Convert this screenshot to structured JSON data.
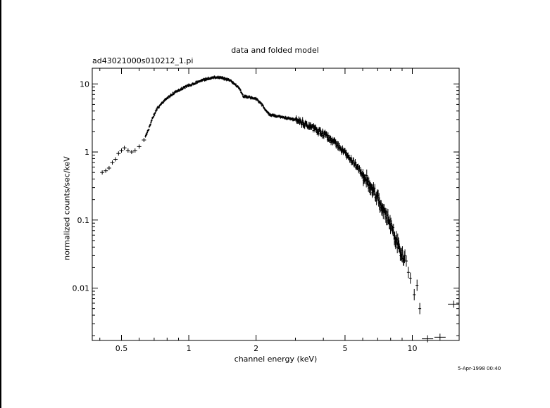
{
  "title": "data and folded model",
  "filename": "ad43021000s010212_1.pi",
  "timestamp": "5-Apr-1998 00:40",
  "chart_data": {
    "type": "scatter",
    "title": "data and folded model",
    "xlabel": "channel energy (keV)",
    "ylabel": "normalized counts/sec/keV",
    "xscale": "log",
    "yscale": "log",
    "xlim": [
      0.37,
      16.2
    ],
    "ylim": [
      0.0017,
      17
    ],
    "xticks": [
      0.5,
      1,
      2,
      5,
      10
    ],
    "xtick_labels": [
      "0.5",
      "1",
      "2",
      "5",
      "10"
    ],
    "yticks": [
      0.01,
      0.1,
      1,
      10
    ],
    "ytick_labels": [
      "0.01",
      "0.1",
      "1",
      "10"
    ],
    "grid": false,
    "series": [
      {
        "points": [
          [
            0.41,
            0.5
          ],
          [
            0.425,
            0.53
          ],
          [
            0.44,
            0.58
          ],
          [
            0.455,
            0.7
          ],
          [
            0.47,
            0.78
          ],
          [
            0.485,
            0.95
          ],
          [
            0.5,
            1.05
          ],
          [
            0.515,
            1.15
          ],
          [
            0.535,
            1.05
          ],
          [
            0.555,
            1.0
          ],
          [
            0.575,
            1.05
          ],
          [
            0.6,
            1.2
          ],
          [
            0.63,
            1.5
          ],
          [
            0.66,
            2.1
          ],
          [
            0.69,
            3.2
          ],
          [
            0.72,
            4.3
          ],
          [
            0.76,
            5.2
          ],
          [
            0.8,
            6.2
          ],
          [
            0.85,
            7.2
          ],
          [
            0.9,
            8.0
          ],
          [
            0.95,
            8.8
          ],
          [
            1.0,
            9.5
          ],
          [
            1.1,
            10.8
          ],
          [
            1.2,
            11.8
          ],
          [
            1.3,
            12.5
          ],
          [
            1.4,
            12.3
          ],
          [
            1.5,
            11.5
          ],
          [
            1.6,
            10.2
          ],
          [
            1.7,
            8.2
          ],
          [
            1.75,
            6.6
          ],
          [
            1.85,
            6.4
          ],
          [
            2.0,
            6.0
          ],
          [
            2.1,
            5.2
          ],
          [
            2.2,
            4.2
          ],
          [
            2.3,
            3.5
          ],
          [
            2.5,
            3.35
          ],
          [
            2.7,
            3.2
          ],
          [
            3.0,
            2.95
          ],
          [
            3.3,
            2.6
          ],
          [
            3.6,
            2.25
          ],
          [
            4.0,
            1.85
          ],
          [
            4.5,
            1.35
          ],
          [
            5.0,
            0.95
          ],
          [
            5.5,
            0.68
          ],
          [
            6.0,
            0.47
          ],
          [
            6.5,
            0.32
          ],
          [
            7.0,
            0.21
          ],
          [
            7.5,
            0.13
          ],
          [
            8.0,
            0.085
          ],
          [
            8.5,
            0.05
          ],
          [
            9.0,
            0.03
          ],
          [
            9.4,
            0.025
          ],
          [
            9.6,
            0.017
          ],
          [
            9.8,
            0.014
          ],
          [
            10.2,
            0.008
          ],
          [
            10.5,
            0.011
          ],
          [
            10.8,
            0.005
          ],
          [
            11.7,
            0.0018
          ],
          [
            13.3,
            0.0019
          ],
          [
            15.3,
            0.0058
          ]
        ]
      }
    ]
  }
}
